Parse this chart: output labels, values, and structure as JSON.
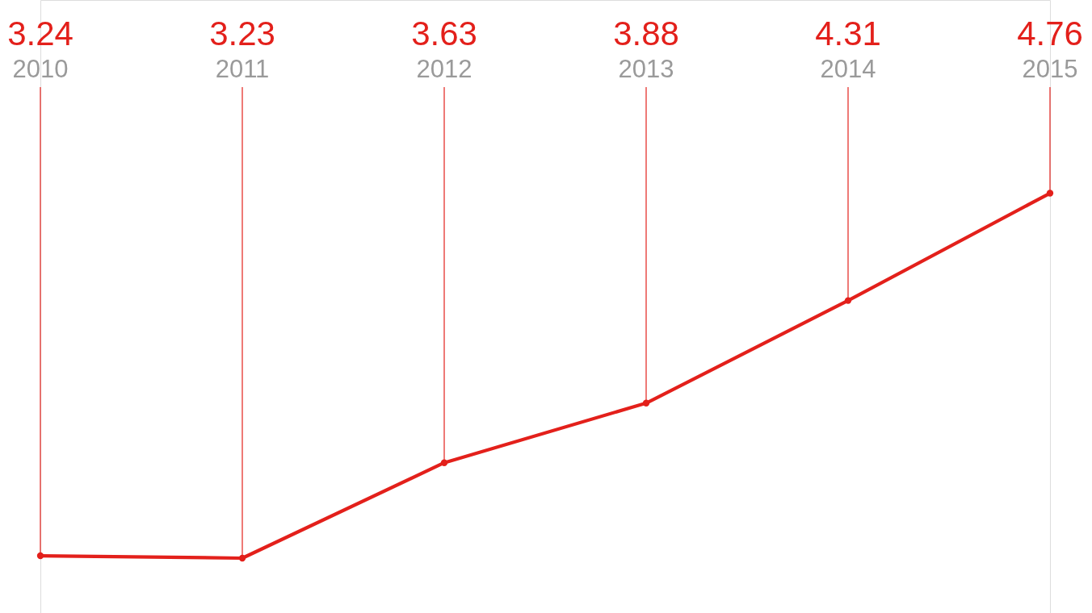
{
  "chart_data": {
    "type": "line",
    "categories": [
      "2010",
      "2011",
      "2012",
      "2013",
      "2014",
      "2015"
    ],
    "grid": "x",
    "marker": "circle",
    "series": [
      {
        "color": "#e3201b",
        "values": [
          3.24,
          3.23,
          3.63,
          3.88,
          4.31,
          4.76
        ],
        "value_labels": [
          "3.24",
          "3.23",
          "3.63",
          "3.88",
          "4.31",
          "4.76"
        ]
      }
    ]
  }
}
